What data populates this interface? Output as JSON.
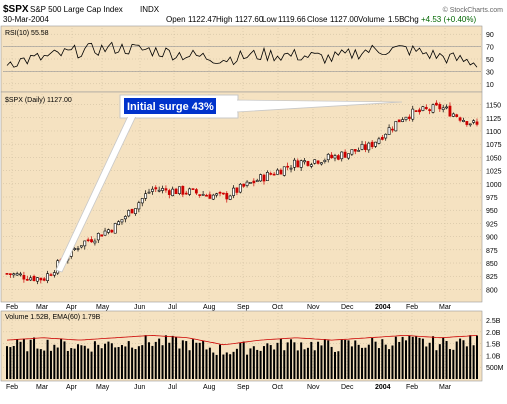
{
  "header": {
    "symbol": "$SPX",
    "name": "S&P 500 Large Cap Index",
    "exchange": "INDX",
    "date": "30-Mar-2004",
    "open_label": "Open",
    "open": "1122.47",
    "high_label": "High",
    "high": "1127.60",
    "low_label": "Low",
    "low": "1119.66",
    "close_label": "Close",
    "close": "1127.00",
    "volume_label": "Volume",
    "volume": "1.5B",
    "chg_label": "Chg",
    "chg": "+4.53 (+0.40%)",
    "watermark": "© StockCharts.com"
  },
  "rsi_panel": {
    "label": "RSI(10) 55.58",
    "ticks": [
      "90",
      "70",
      "50",
      "30",
      "10"
    ]
  },
  "price_panel": {
    "label": "$SPX (Daily) 1127.00",
    "annotation": "Initial surge 43%"
  },
  "volume_panel": {
    "label": "Volume 1.52B, EMA(60) 1.79B",
    "ticks": [
      "2.5B",
      "2.0B",
      "1.5B",
      "1.0B",
      "500M"
    ]
  },
  "x_labels": [
    "Feb",
    "Mar",
    "Apr",
    "May",
    "Jun",
    "Jul",
    "Aug",
    "Sep",
    "Oct",
    "Nov",
    "Dec",
    "2004",
    "Feb",
    "Mar"
  ],
  "colors": {
    "panel_bg": "#f5e2c1",
    "up": "#000000",
    "down": "#cc0000",
    "rsi_line": "#000000",
    "annotation_text": "#ffffff",
    "annotation_bg": "#0033cc"
  },
  "chart_data": [
    {
      "type": "line",
      "title": "RSI(10) 55.58",
      "ylim": [
        0,
        100
      ],
      "ticks": [
        90,
        70,
        50,
        30,
        10
      ],
      "x": [
        "2003-02",
        "2003-03",
        "2003-04",
        "2003-05",
        "2003-06",
        "2003-07",
        "2003-08",
        "2003-09",
        "2003-10",
        "2003-11",
        "2003-12",
        "2004-01",
        "2004-02",
        "2004-03"
      ],
      "values": [
        45,
        52,
        63,
        68,
        64,
        56,
        50,
        57,
        56,
        51,
        64,
        66,
        54,
        44
      ]
    },
    {
      "type": "candlestick",
      "title": "$SPX (Daily) 1127.00",
      "ylim": [
        780,
        1170
      ],
      "ticks": [
        1150,
        1125,
        1100,
        1075,
        1050,
        1025,
        1000,
        975,
        950,
        925,
        900,
        875,
        850,
        825,
        800
      ],
      "x": [
        "2003-02",
        "2003-03",
        "2003-04",
        "2003-05",
        "2003-06",
        "2003-07",
        "2003-08",
        "2003-09",
        "2003-10",
        "2003-11",
        "2003-12",
        "2004-01",
        "2004-02",
        "2004-03"
      ],
      "values": [
        830,
        820,
        885,
        920,
        990,
        985,
        975,
        1010,
        1040,
        1050,
        1070,
        1130,
        1145,
        1110
      ],
      "annotations": [
        {
          "text": "Initial surge 43%"
        }
      ]
    },
    {
      "type": "bar",
      "title": "Volume 1.52B, EMA(60) 1.79B",
      "ylim": [
        0,
        2.8
      ],
      "ticks": [
        "2.5B",
        "2.0B",
        "1.5B",
        "1.0B",
        "500M"
      ],
      "x": [
        "2003-02",
        "2003-03",
        "2003-04",
        "2003-05",
        "2003-06",
        "2003-07",
        "2003-08",
        "2003-09",
        "2003-10",
        "2003-11",
        "2003-12",
        "2004-01",
        "2004-02",
        "2004-03"
      ],
      "values": [
        1.4,
        1.5,
        1.4,
        1.5,
        1.6,
        1.5,
        1.2,
        1.4,
        1.5,
        1.4,
        1.5,
        1.6,
        1.5,
        1.6
      ]
    }
  ]
}
